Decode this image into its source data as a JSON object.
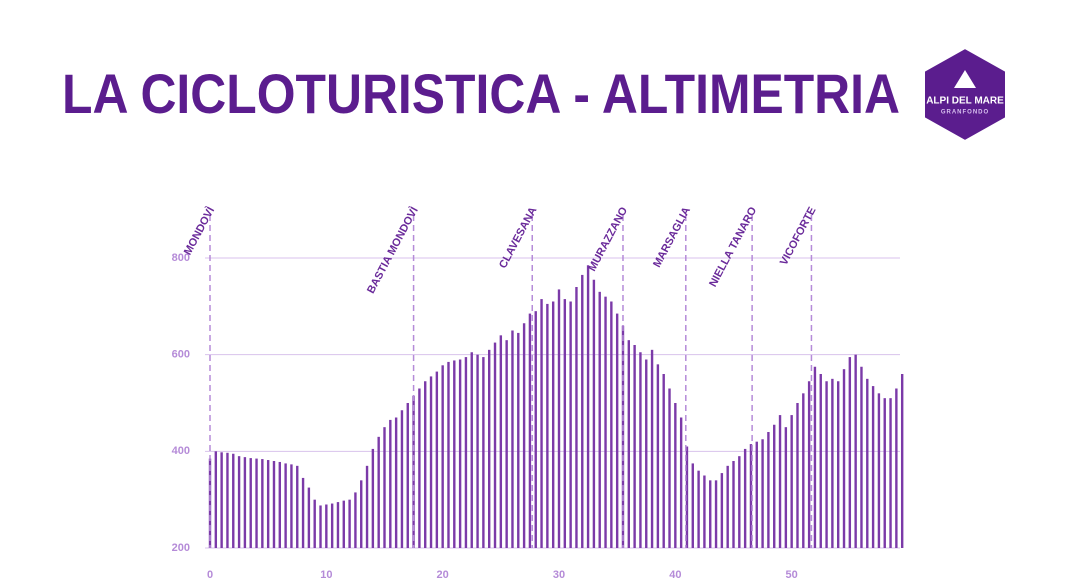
{
  "chart_data": {
    "type": "bar",
    "title": "LA CICLOTURISTICA - ALTIMETRIA",
    "logo": {
      "name": "ALPI DEL MARE",
      "subtitle": "GRANFONDO"
    },
    "color": "#7b3aa8",
    "grid": true,
    "x": [
      0,
      0.5,
      1,
      1.5,
      2,
      2.5,
      3,
      3.5,
      4,
      4.5,
      5,
      5.5,
      6,
      6.5,
      7,
      7.5,
      8,
      8.5,
      9,
      9.5,
      10,
      10.5,
      11,
      11.5,
      12,
      12.5,
      13,
      13.5,
      14,
      14.5,
      15,
      15.5,
      16,
      16.5,
      17,
      17.5,
      18,
      18.5,
      19,
      19.5,
      20,
      20.5,
      21,
      21.5,
      22,
      22.5,
      23,
      23.5,
      24,
      24.5,
      25,
      25.5,
      26,
      26.5,
      27,
      27.5,
      28,
      28.5,
      29,
      29.5,
      30,
      30.5,
      31,
      31.5,
      32,
      32.5,
      33,
      33.5,
      34,
      34.5,
      35,
      35.5,
      36,
      36.5,
      37,
      37.5,
      38,
      38.5,
      39,
      39.5,
      40,
      40.5,
      41,
      41.5,
      42,
      42.5,
      43,
      43.5,
      44,
      44.5,
      45,
      45.5,
      46,
      46.5,
      47,
      47.5,
      48,
      48.5,
      49,
      49.5,
      50,
      50.5,
      51,
      51.5,
      52,
      52.5,
      53,
      53.5,
      54,
      54.5,
      55,
      55.5,
      56,
      56.5,
      57,
      57.5,
      58,
      58.5,
      59,
      59.5
    ],
    "values": [
      385,
      400,
      398,
      397,
      395,
      390,
      388,
      386,
      385,
      384,
      382,
      380,
      378,
      375,
      373,
      370,
      345,
      325,
      300,
      288,
      290,
      292,
      295,
      298,
      300,
      315,
      340,
      370,
      405,
      430,
      450,
      465,
      470,
      485,
      500,
      515,
      530,
      545,
      555,
      565,
      578,
      585,
      588,
      590,
      595,
      605,
      600,
      595,
      610,
      625,
      640,
      630,
      650,
      645,
      665,
      685,
      690,
      715,
      705,
      710,
      735,
      715,
      710,
      740,
      765,
      785,
      755,
      730,
      720,
      710,
      685,
      660,
      630,
      620,
      605,
      590,
      610,
      580,
      560,
      530,
      500,
      470,
      410,
      375,
      360,
      350,
      340,
      340,
      355,
      370,
      380,
      390,
      405,
      415,
      420,
      425,
      440,
      455,
      475,
      450,
      475,
      500,
      520,
      545,
      575,
      560,
      545,
      550,
      545,
      570,
      595,
      600,
      575,
      550,
      535,
      520,
      510,
      510,
      530,
      560
    ],
    "xlim": [
      0,
      60
    ],
    "ylim": [
      200,
      800
    ],
    "xticks": [
      0,
      10,
      20,
      30,
      40,
      50
    ],
    "yticks": [
      200,
      400,
      600,
      800
    ],
    "annotations": [
      {
        "label": "MONDOVÌ",
        "x": 0
      },
      {
        "label": "BASTIA MONDOVÌ",
        "x": 17.5
      },
      {
        "label": "CLAVESANA",
        "x": 27.7
      },
      {
        "label": "MURAZZANO",
        "x": 35.5
      },
      {
        "label": "MARSAGLIA",
        "x": 40.9
      },
      {
        "label": "NIELLA TANARO",
        "x": 46.6
      },
      {
        "label": "VICOFORTE",
        "x": 51.7
      }
    ]
  }
}
